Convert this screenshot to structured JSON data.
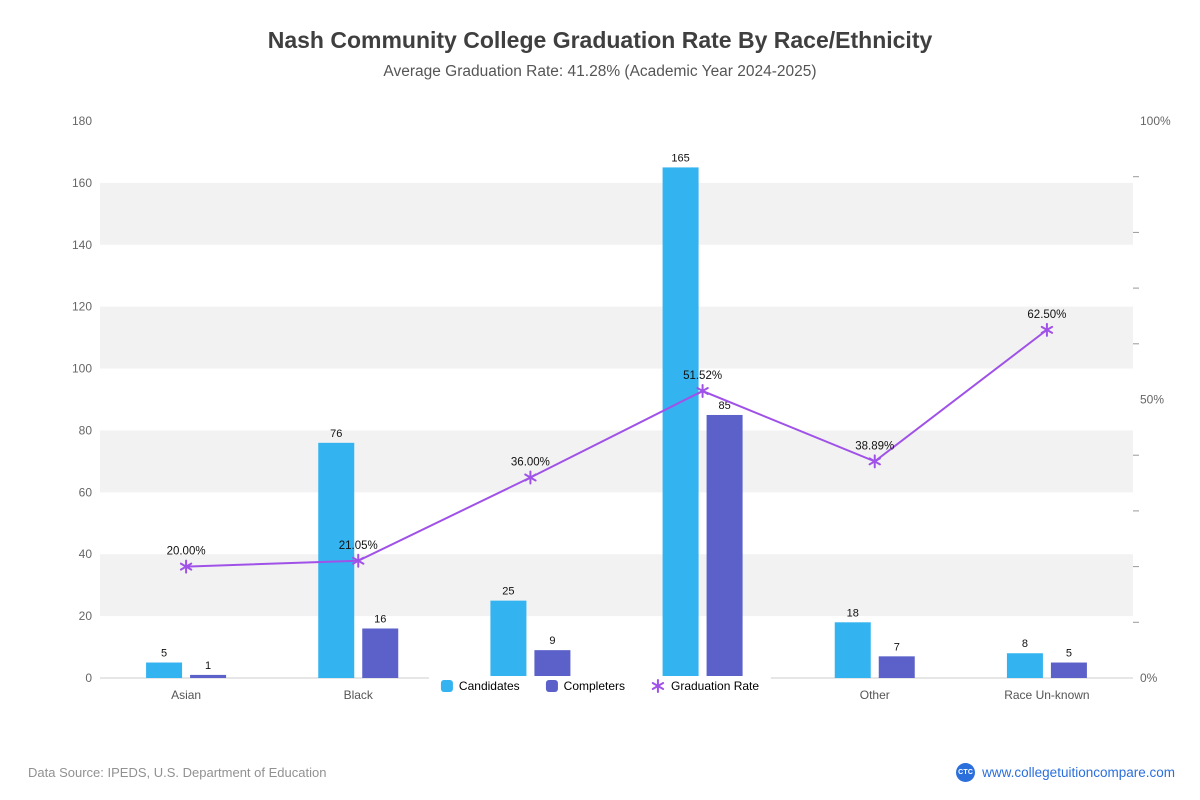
{
  "title": "Nash Community College Graduation Rate By Race/Ethnicity",
  "subtitle": "Average Graduation Rate: 41.28% (Academic Year 2024-2025)",
  "legend": [
    {
      "label": "Candidates",
      "marker": "square",
      "color_key": "candidates"
    },
    {
      "label": "Completers",
      "marker": "square",
      "color_key": "completers"
    },
    {
      "label": "Graduation Rate",
      "marker": "asterisk",
      "color_key": "rate"
    }
  ],
  "footer": {
    "source": "Data Source: IPEDS, U.S. Department of Education",
    "website": "www.collegetuitioncompare.com",
    "logo_text": "CTC"
  },
  "colors": {
    "candidates": "#33b3f0",
    "completers": "#5b61c9",
    "rate": "#a052e8",
    "band": "#f2f2f2",
    "axis_line": "#cccccc",
    "tick": "#999999",
    "axis_text": "#666666",
    "category_text": "#555555",
    "value_text": "#111111"
  },
  "chart_data": {
    "type": "bar",
    "subtype": "grouped-bars-with-line-overlay",
    "title": "Nash Community College Graduation Rate By Race/Ethnicity",
    "subtitle": "Average Graduation Rate: 41.28% (Academic Year 2024-2025)",
    "categories": [
      "Asian",
      "Black",
      "",
      "",
      "Other",
      "Race Un-known"
    ],
    "categories_note": "3rd and 4th category labels are hidden behind the centered legend in the rendered image",
    "series": [
      {
        "name": "Candidates",
        "type": "bar",
        "axis": "left",
        "values": [
          5,
          76,
          25,
          165,
          18,
          8
        ]
      },
      {
        "name": "Completers",
        "type": "bar",
        "axis": "left",
        "values": [
          1,
          16,
          9,
          85,
          7,
          5
        ]
      },
      {
        "name": "Graduation Rate",
        "type": "line",
        "axis": "right",
        "values": [
          20.0,
          21.05,
          36.0,
          51.52,
          38.89,
          62.5
        ],
        "labels": [
          "20.00%",
          "21.05%",
          "36.00%",
          "51.52%",
          "38.89%",
          "62.50%"
        ]
      }
    ],
    "left_axis": {
      "min": 0,
      "max": 180,
      "step": 20
    },
    "right_axis": {
      "min": 0,
      "max": 100,
      "labels": [
        "0%",
        "50%",
        "100%"
      ],
      "label_positions": [
        0,
        50,
        100
      ],
      "minor_step": 10
    },
    "legend_position": "bottom-center",
    "banded_background": true,
    "grid": "horizontal-bands"
  }
}
